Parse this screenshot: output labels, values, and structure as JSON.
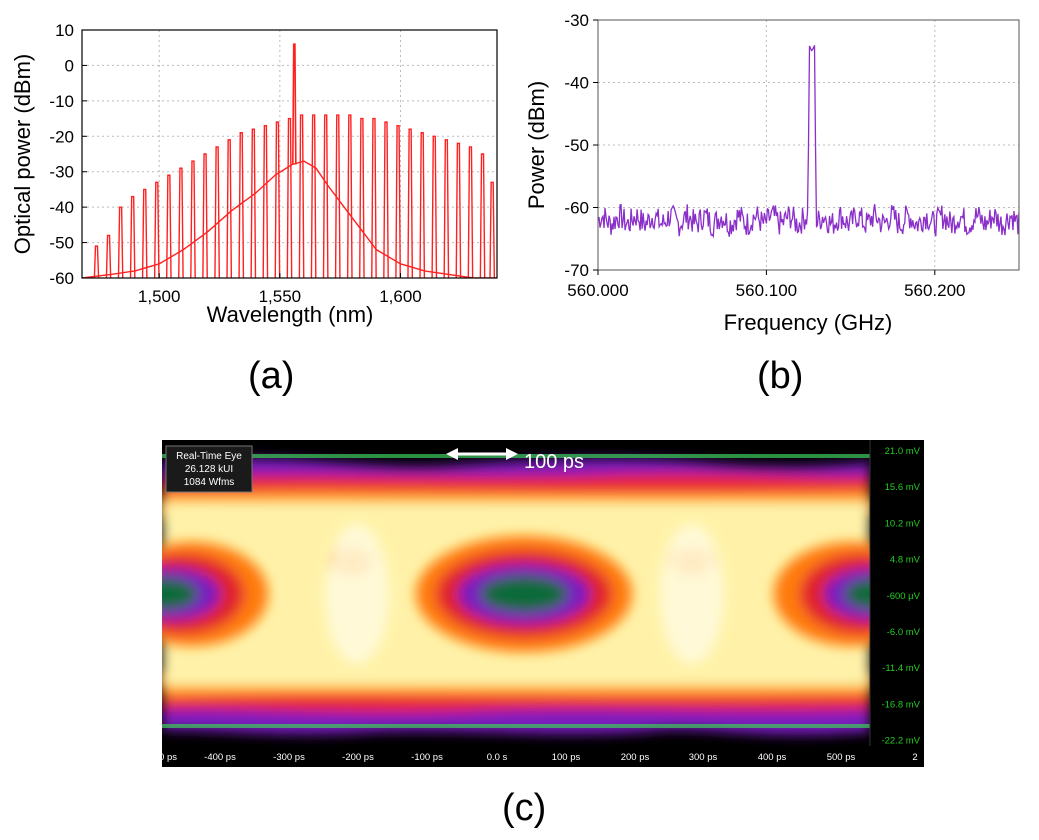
{
  "panels": {
    "a": "(a)",
    "b": "(b)",
    "c": "(c)"
  },
  "chart_data": [
    {
      "id": "a",
      "type": "line",
      "xlabel": "Wavelength (nm)",
      "ylabel": "Optical power (dBm)",
      "xlim": [
        1468,
        1640
      ],
      "ylim": [
        -60,
        10
      ],
      "x_ticks": [
        1500,
        1550,
        1600
      ],
      "x_tick_labels": [
        "1,500",
        "1,550",
        "1,600"
      ],
      "y_ticks": [
        10,
        0,
        -10,
        -20,
        -30,
        -40,
        -50,
        -60
      ],
      "grid": true,
      "color": "#ff2020",
      "pump": {
        "x": 1556,
        "y": 6
      },
      "comb_lines": {
        "x": [
          1474,
          1479,
          1484,
          1489,
          1494,
          1499,
          1504,
          1509,
          1514,
          1519,
          1524,
          1529,
          1534,
          1539,
          1544,
          1549,
          1554,
          1559,
          1564,
          1569,
          1574,
          1579,
          1584,
          1589,
          1594,
          1599,
          1604,
          1609,
          1614,
          1619,
          1624,
          1629,
          1634,
          1638
        ],
        "y": [
          -51,
          -48,
          -40,
          -37,
          -35,
          -33,
          -31,
          -29,
          -27,
          -25,
          -23,
          -21,
          -19,
          -18,
          -17,
          -16,
          -15,
          -14,
          -14,
          -14,
          -14,
          -14,
          -15,
          -15,
          -16,
          -17,
          -18,
          -19,
          -20,
          -21,
          -22,
          -23,
          -25,
          -33
        ]
      },
      "floor": {
        "x": [
          1468,
          1480,
          1490,
          1500,
          1510,
          1520,
          1530,
          1540,
          1548,
          1555,
          1560,
          1565,
          1570,
          1580,
          1590,
          1600,
          1610,
          1620,
          1630,
          1640
        ],
        "y": [
          -60,
          -59,
          -58,
          -56,
          -52,
          -47,
          -41,
          -36,
          -31,
          -28,
          -27,
          -29,
          -34,
          -43,
          -52,
          -56,
          -58,
          -59,
          -60,
          -60
        ]
      }
    },
    {
      "id": "b",
      "type": "line",
      "xlabel": "Frequency (GHz)",
      "ylabel": "Power (dBm)",
      "xlim": [
        560.0,
        560.25
      ],
      "ylim": [
        -70,
        -30
      ],
      "x_ticks": [
        560.0,
        560.1,
        560.2
      ],
      "x_tick_labels": [
        "560.000",
        "560.100",
        "560.200"
      ],
      "y_ticks": [
        -30,
        -40,
        -50,
        -60,
        -70
      ],
      "grid": true,
      "color": "#8b2fc9",
      "noise_level": -62,
      "peak": {
        "x": 560.127,
        "y": -35
      }
    },
    {
      "id": "c",
      "type": "heatmap",
      "title_lines": [
        "Real-Time Eye",
        "26.128 kUI",
        "1084 Wfms"
      ],
      "annotation": "100 ps",
      "x_tick_labels": [
        "0 ps",
        "-400 ps",
        "-300 ps",
        "-200 ps",
        "-100 ps",
        "0.0 s",
        "100 ps",
        "200 ps",
        "300 ps",
        "400 ps",
        "500 ps",
        "2"
      ],
      "y_tick_labels": [
        "21.0 mV",
        "15.6 mV",
        "10.2 mV",
        "4.8 mV",
        "-600 µV",
        "-6.0 mV",
        "-11.4 mV",
        "-16.8 mV",
        "-22.2 mV"
      ],
      "colors": {
        "background": "#000000",
        "label": "#22cc22"
      }
    }
  ]
}
